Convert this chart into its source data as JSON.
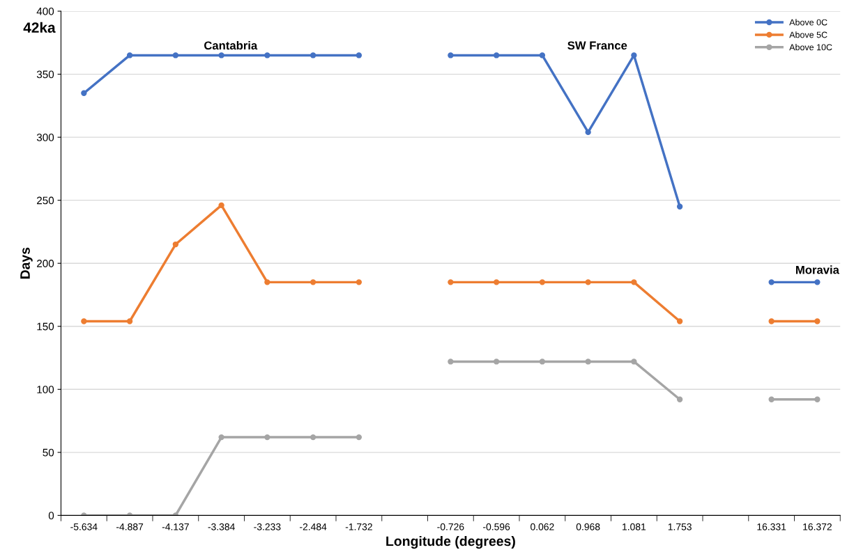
{
  "chart_data": {
    "type": "line",
    "xlabel": "Longitude (degrees)",
    "ylabel": "Days",
    "categories": [
      "-5.634",
      "-4.887",
      "-4.137",
      "-3.384",
      "-3.233",
      "-2.484",
      "-1.732",
      null,
      "-0.726",
      "-0.596",
      "0.062",
      "0.968",
      "1.081",
      "1.753",
      null,
      "16.331",
      "16.372"
    ],
    "series": [
      {
        "name": "Above 0C",
        "color": "#4472c4",
        "values": [
          335,
          365,
          365,
          365,
          365,
          365,
          365,
          null,
          365,
          365,
          365,
          304,
          365,
          245,
          null,
          185,
          185
        ]
      },
      {
        "name": "Above 5C",
        "color": "#ed7d31",
        "values": [
          154,
          154,
          215,
          246,
          185,
          185,
          185,
          null,
          185,
          185,
          185,
          185,
          185,
          154,
          null,
          154,
          154
        ]
      },
      {
        "name": "Above 10C",
        "color": "#a5a5a5",
        "values": [
          0,
          0,
          0,
          62,
          62,
          62,
          62,
          null,
          122,
          122,
          122,
          122,
          122,
          92,
          null,
          92,
          92
        ]
      }
    ],
    "annotations": [
      "42ka",
      "Cantabria",
      "SW France",
      "Moravia"
    ],
    "ylim": [
      0,
      400
    ],
    "yticks": [
      0,
      50,
      100,
      150,
      200,
      250,
      300,
      350,
      400
    ],
    "grid": "y",
    "legend": "top right",
    "marker": "circle",
    "line_style": "solid"
  }
}
